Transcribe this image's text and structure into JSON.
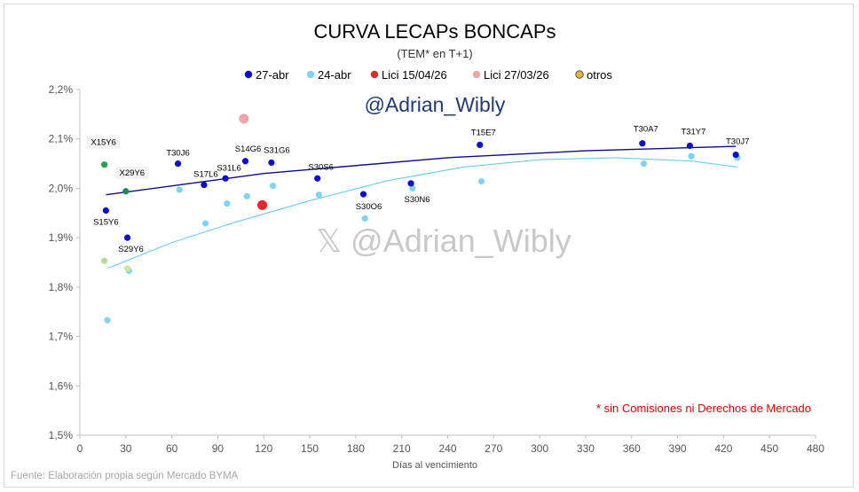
{
  "chart_data": {
    "type": "scatter",
    "title": "CURVA LECAPs BONCAPs",
    "subtitle": "(TEM* en T+1)",
    "xlabel": "Días al vencimiento",
    "ylabel": "",
    "xlim": [
      0,
      480
    ],
    "ylim": [
      1.5,
      2.2
    ],
    "x_ticks": [
      0,
      30,
      60,
      90,
      120,
      150,
      180,
      210,
      240,
      270,
      300,
      330,
      360,
      390,
      420,
      450,
      480
    ],
    "y_ticks": [
      1.5,
      1.6,
      1.7,
      1.8,
      1.9,
      2.0,
      2.1,
      2.2
    ],
    "y_tick_labels": [
      "1,5%",
      "1,6%",
      "1,7%",
      "1,8%",
      "1,9%",
      "2,0%",
      "2,1%",
      "2,2%"
    ],
    "grid": false,
    "legend_position": "top",
    "legend": [
      "27-abr",
      "24-abr",
      "Lici 15/04/26",
      "Lici 27/03/26",
      "otros"
    ],
    "series": [
      {
        "name": "27-abr",
        "color": "#0b0bd6",
        "trend_color": "#0b0b8c",
        "points": [
          {
            "x": 17,
            "y": 1.955,
            "label": "S15Y6"
          },
          {
            "x": 31,
            "y": 1.9,
            "label": "S29Y6"
          },
          {
            "x": 64,
            "y": 2.05,
            "label": "T30J6"
          },
          {
            "x": 81,
            "y": 2.007,
            "label": "S17L6"
          },
          {
            "x": 95,
            "y": 2.02,
            "label": "S31L6"
          },
          {
            "x": 108,
            "y": 2.055,
            "label": "S14G6"
          },
          {
            "x": 125,
            "y": 2.052,
            "label": "S31G6"
          },
          {
            "x": 155,
            "y": 2.02,
            "label": "S30S6"
          },
          {
            "x": 185,
            "y": 1.988,
            "label": "S30O6"
          },
          {
            "x": 216,
            "y": 2.01,
            "label": "S30N6"
          },
          {
            "x": 261,
            "y": 2.088,
            "label": "T15E7"
          },
          {
            "x": 367,
            "y": 2.091,
            "label": "T30A7"
          },
          {
            "x": 398,
            "y": 2.086,
            "label": "T31Y7"
          },
          {
            "x": 428,
            "y": 2.068,
            "label": "T30J7"
          }
        ],
        "trend": [
          [
            17,
            1.987
          ],
          [
            120,
            2.03
          ],
          [
            240,
            2.062
          ],
          [
            330,
            2.076
          ],
          [
            428,
            2.085
          ]
        ]
      },
      {
        "name": "24-abr",
        "color": "#7fd3f7",
        "trend_color": "#5bc8f0",
        "points": [
          {
            "x": 18,
            "y": 1.733
          },
          {
            "x": 32,
            "y": 1.833
          },
          {
            "x": 65,
            "y": 1.997
          },
          {
            "x": 82,
            "y": 1.929
          },
          {
            "x": 96,
            "y": 1.969
          },
          {
            "x": 109,
            "y": 1.984
          },
          {
            "x": 126,
            "y": 2.005
          },
          {
            "x": 156,
            "y": 1.987
          },
          {
            "x": 186,
            "y": 1.939
          },
          {
            "x": 217,
            "y": 2.0
          },
          {
            "x": 262,
            "y": 2.014
          },
          {
            "x": 368,
            "y": 2.05
          },
          {
            "x": 399,
            "y": 2.065
          },
          {
            "x": 429,
            "y": 2.062
          }
        ],
        "trend": [
          [
            18,
            1.838
          ],
          [
            60,
            1.89
          ],
          [
            100,
            1.93
          ],
          [
            150,
            1.975
          ],
          [
            200,
            2.015
          ],
          [
            250,
            2.043
          ],
          [
            300,
            2.058
          ],
          [
            350,
            2.062
          ],
          [
            400,
            2.055
          ],
          [
            429,
            2.043
          ]
        ]
      },
      {
        "name": "Lici 15/04/26",
        "color": "#e8262c",
        "points": [
          {
            "x": 119,
            "y": 1.966
          }
        ]
      },
      {
        "name": "Lici 27/03/26",
        "color": "#f4a3a3",
        "points": [
          {
            "x": 107,
            "y": 2.141
          }
        ]
      },
      {
        "name": "otros",
        "color": "#f0b323",
        "points": [
          {
            "x": 16,
            "y": 2.048,
            "label": "X15Y6",
            "color": "#1aa34a"
          },
          {
            "x": 30,
            "y": 1.994,
            "label": "X29Y6",
            "color": "#1a8a5a"
          },
          {
            "x": 16,
            "y": 1.853,
            "color": "#b8dca0"
          },
          {
            "x": 31,
            "y": 1.838,
            "color": "#d4e3a0"
          }
        ]
      }
    ]
  },
  "watermark_top": "@Adrian_Wibly",
  "watermark_center": "𝕏 @Adrian_Wibly",
  "note": "* sin Comisiones ni Derechos de Mercado",
  "source": "Fuente: Elaboración propia según Mercado BYMA"
}
